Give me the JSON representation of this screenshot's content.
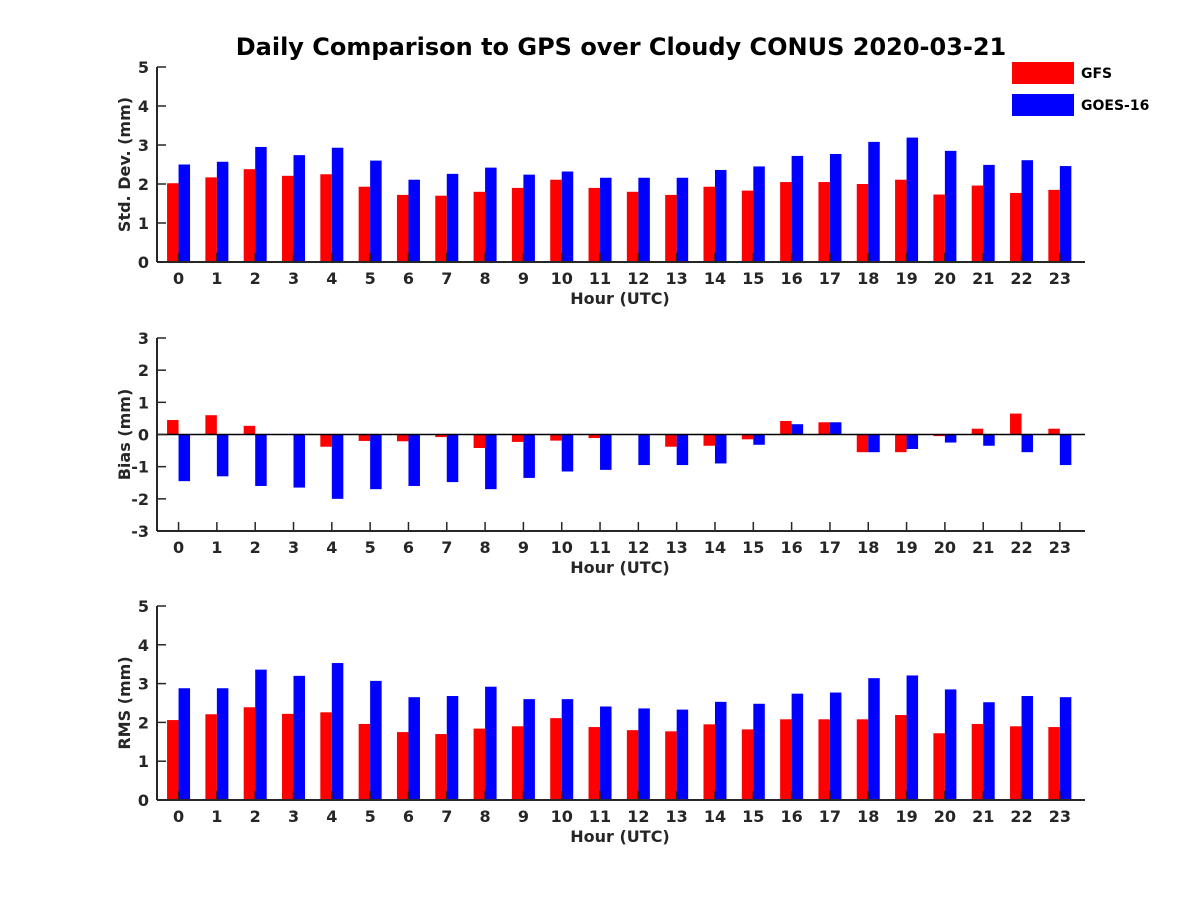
{
  "figure_title": "Daily Comparison to GPS over Cloudy CONUS 2020-03-21",
  "legend": {
    "position": "top-right",
    "entries": [
      {
        "name": "GFS",
        "color": "#ff0000"
      },
      {
        "name": "GOES-16",
        "color": "#0000ff"
      }
    ]
  },
  "chart_data": [
    {
      "type": "bar",
      "title": "",
      "xlabel": "Hour (UTC)",
      "ylabel": "Std. Dev. (mm)",
      "ylim": [
        0,
        5
      ],
      "yticks": [
        0,
        1,
        2,
        3,
        4,
        5
      ],
      "categories": [
        "0",
        "1",
        "2",
        "3",
        "4",
        "5",
        "6",
        "7",
        "8",
        "9",
        "10",
        "11",
        "12",
        "13",
        "14",
        "15",
        "16",
        "17",
        "18",
        "19",
        "20",
        "21",
        "22",
        "23"
      ],
      "series": [
        {
          "name": "GFS",
          "color": "#ff0000",
          "values": [
            2.02,
            2.17,
            2.38,
            2.21,
            2.25,
            1.93,
            1.72,
            1.7,
            1.8,
            1.9,
            2.11,
            1.9,
            1.8,
            1.72,
            1.93,
            1.83,
            2.05,
            2.05,
            2.0,
            2.11,
            1.73,
            1.96,
            1.77,
            1.85
          ]
        },
        {
          "name": "GOES-16",
          "color": "#0000ff",
          "values": [
            2.5,
            2.57,
            2.95,
            2.74,
            2.93,
            2.6,
            2.11,
            2.26,
            2.42,
            2.24,
            2.32,
            2.16,
            2.16,
            2.16,
            2.36,
            2.45,
            2.72,
            2.77,
            3.08,
            3.19,
            2.85,
            2.49,
            2.61,
            2.46
          ]
        }
      ]
    },
    {
      "type": "bar",
      "title": "",
      "xlabel": "Hour (UTC)",
      "ylabel": "Bias (mm)",
      "ylim": [
        -3,
        3
      ],
      "yticks": [
        -3,
        -2,
        -1,
        0,
        1,
        2,
        3
      ],
      "categories": [
        "0",
        "1",
        "2",
        "3",
        "4",
        "5",
        "6",
        "7",
        "8",
        "9",
        "10",
        "11",
        "12",
        "13",
        "14",
        "15",
        "16",
        "17",
        "18",
        "19",
        "20",
        "21",
        "22",
        "23"
      ],
      "series": [
        {
          "name": "GFS",
          "color": "#ff0000",
          "values": [
            0.45,
            0.6,
            0.27,
            0.0,
            -0.38,
            -0.2,
            -0.21,
            -0.08,
            -0.42,
            -0.23,
            -0.19,
            -0.11,
            0.0,
            -0.38,
            -0.35,
            -0.15,
            0.42,
            0.38,
            -0.55,
            -0.55,
            -0.05,
            0.18,
            0.65,
            0.18
          ]
        },
        {
          "name": "GOES-16",
          "color": "#0000ff",
          "values": [
            -1.45,
            -1.3,
            -1.6,
            -1.65,
            -2.0,
            -1.7,
            -1.6,
            -1.48,
            -1.7,
            -1.35,
            -1.15,
            -1.1,
            -0.95,
            -0.95,
            -0.9,
            -0.32,
            0.32,
            0.38,
            -0.55,
            -0.45,
            -0.25,
            -0.35,
            -0.55,
            -0.95
          ]
        }
      ]
    },
    {
      "type": "bar",
      "title": "",
      "xlabel": "Hour (UTC)",
      "ylabel": "RMS (mm)",
      "ylim": [
        0,
        5
      ],
      "yticks": [
        0,
        1,
        2,
        3,
        4,
        5
      ],
      "categories": [
        "0",
        "1",
        "2",
        "3",
        "4",
        "5",
        "6",
        "7",
        "8",
        "9",
        "10",
        "11",
        "12",
        "13",
        "14",
        "15",
        "16",
        "17",
        "18",
        "19",
        "20",
        "21",
        "22",
        "23"
      ],
      "series": [
        {
          "name": "GFS",
          "color": "#ff0000",
          "values": [
            2.06,
            2.21,
            2.39,
            2.22,
            2.26,
            1.96,
            1.75,
            1.7,
            1.84,
            1.9,
            2.11,
            1.88,
            1.8,
            1.77,
            1.95,
            1.82,
            2.08,
            2.08,
            2.08,
            2.19,
            1.72,
            1.96,
            1.9,
            1.88
          ]
        },
        {
          "name": "GOES-16",
          "color": "#0000ff",
          "values": [
            2.88,
            2.88,
            3.36,
            3.2,
            3.53,
            3.07,
            2.65,
            2.68,
            2.92,
            2.6,
            2.6,
            2.41,
            2.36,
            2.33,
            2.53,
            2.48,
            2.74,
            2.77,
            3.14,
            3.21,
            2.85,
            2.52,
            2.68,
            2.65
          ]
        }
      ]
    }
  ]
}
